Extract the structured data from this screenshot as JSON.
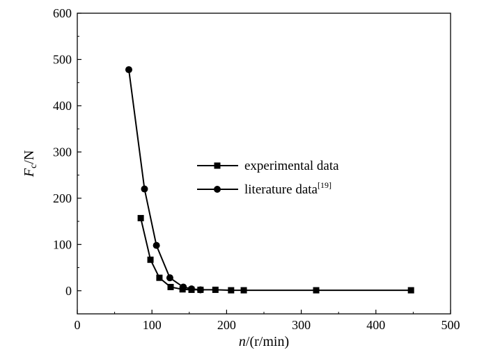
{
  "chart_data": {
    "type": "line",
    "xlabel": {
      "var": "n",
      "unit": "/(r/min)"
    },
    "ylabel": {
      "var": "F",
      "sub": "c",
      "unit": "/N"
    },
    "xlim": [
      0,
      500
    ],
    "ylim": [
      -50,
      600
    ],
    "xticks": [
      0,
      100,
      200,
      300,
      400,
      500
    ],
    "yticks": [
      0,
      100,
      200,
      300,
      400,
      500,
      600
    ],
    "grid": false,
    "legend_position": "center-right",
    "series": [
      {
        "name": "experimental data",
        "marker": "square",
        "x": [
          85,
          98,
          110,
          125,
          141,
          153,
          165,
          185,
          206,
          223,
          320,
          447
        ],
        "y": [
          157,
          67,
          28,
          8,
          3,
          2,
          2,
          2,
          1,
          1,
          1,
          1
        ]
      },
      {
        "name": "literature data",
        "name_superscript": "[19]",
        "marker": "circle",
        "x": [
          69,
          90,
          106,
          124,
          142,
          153,
          165
        ],
        "y": [
          478,
          220,
          98,
          28,
          8,
          4,
          2
        ]
      }
    ]
  }
}
